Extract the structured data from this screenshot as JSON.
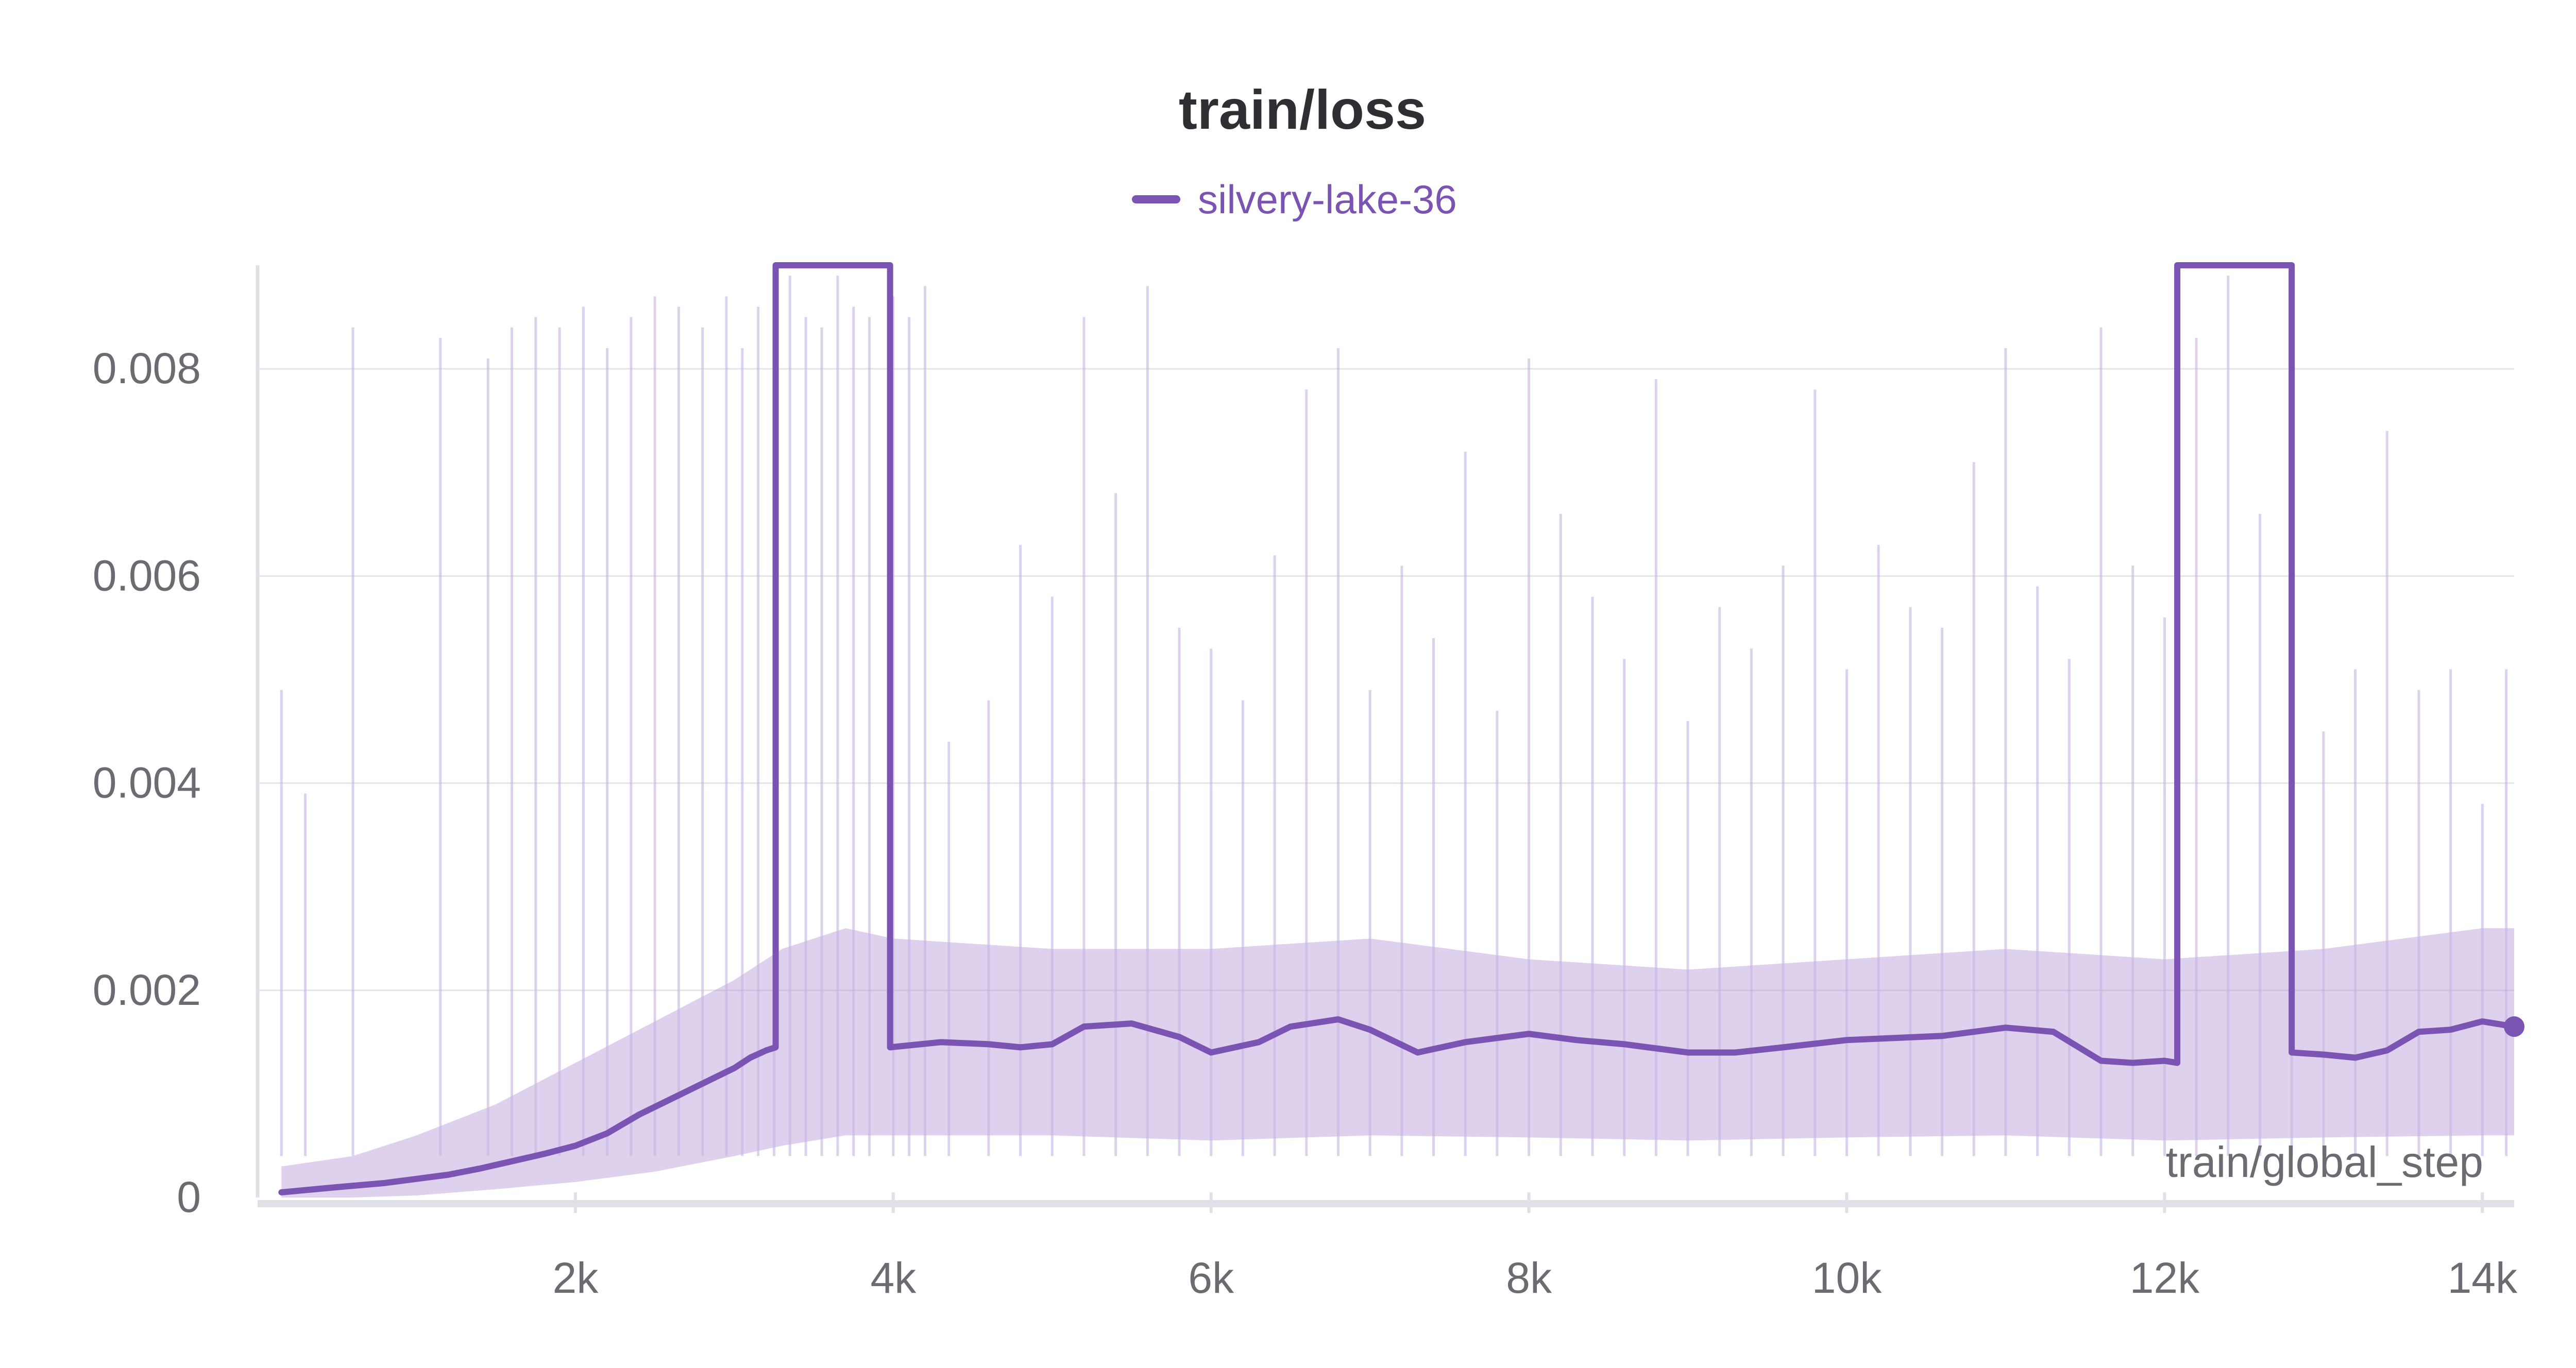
{
  "chart_data": {
    "type": "line",
    "title": "train/loss",
    "xlabel": "train/global_step",
    "ylabel": "",
    "xlim": [
      0,
      14200
    ],
    "ylim": [
      0,
      0.009
    ],
    "grid": true,
    "legend_position": "top-center",
    "x_ticks": [
      {
        "value": 2000,
        "label": "2k"
      },
      {
        "value": 4000,
        "label": "4k"
      },
      {
        "value": 6000,
        "label": "6k"
      },
      {
        "value": 8000,
        "label": "8k"
      },
      {
        "value": 10000,
        "label": "10k"
      },
      {
        "value": 12000,
        "label": "12k"
      },
      {
        "value": 14000,
        "label": "14k"
      }
    ],
    "y_ticks": [
      {
        "value": 0,
        "label": "0"
      },
      {
        "value": 0.002,
        "label": "0.002"
      },
      {
        "value": 0.004,
        "label": "0.004"
      },
      {
        "value": 0.006,
        "label": "0.006"
      },
      {
        "value": 0.008,
        "label": "0.008"
      }
    ],
    "series": [
      {
        "name": "silvery-lake-36",
        "color": "#7b54b3",
        "smoothed": {
          "x": [
            150,
            500,
            800,
            1000,
            1200,
            1400,
            1600,
            1800,
            2000,
            2200,
            2400,
            2600,
            2800,
            3000,
            3100,
            3200,
            3260,
            3260,
            3980,
            3980,
            4300,
            4600,
            4800,
            5000,
            5200,
            5500,
            5800,
            6000,
            6300,
            6500,
            6800,
            7000,
            7300,
            7600,
            8000,
            8300,
            8600,
            9000,
            9300,
            9600,
            10000,
            10300,
            10600,
            11000,
            11300,
            11600,
            11800,
            12000,
            12080,
            12080,
            12800,
            12800,
            13000,
            13200,
            13400,
            13600,
            13800,
            14000,
            14200
          ],
          "y": [
            5e-05,
            0.0001,
            0.00014,
            0.00018,
            0.00022,
            0.00028,
            0.00035,
            0.00042,
            0.0005,
            0.00062,
            0.0008,
            0.00095,
            0.0011,
            0.00125,
            0.00135,
            0.00142,
            0.00145,
            0.009,
            0.009,
            0.00145,
            0.0015,
            0.00148,
            0.00145,
            0.00148,
            0.00165,
            0.00168,
            0.00155,
            0.0014,
            0.0015,
            0.00165,
            0.00172,
            0.00162,
            0.0014,
            0.0015,
            0.00158,
            0.00152,
            0.00148,
            0.0014,
            0.0014,
            0.00145,
            0.00152,
            0.00154,
            0.00156,
            0.00164,
            0.0016,
            0.00132,
            0.0013,
            0.00132,
            0.0013,
            0.009,
            0.009,
            0.0014,
            0.00138,
            0.00135,
            0.00142,
            0.0016,
            0.00162,
            0.0017,
            0.00165
          ]
        },
        "raw_band_upper": {
          "x": [
            150,
            600,
            1000,
            1500,
            2000,
            2500,
            3000,
            3300,
            3700,
            4000,
            5000,
            6000,
            7000,
            8000,
            9000,
            10000,
            11000,
            12000,
            13000,
            14000,
            14200
          ],
          "y": [
            0.0003,
            0.0004,
            0.0006,
            0.0009,
            0.0013,
            0.0017,
            0.0021,
            0.0024,
            0.0026,
            0.0025,
            0.0024,
            0.0024,
            0.0025,
            0.0023,
            0.0022,
            0.0023,
            0.0024,
            0.0023,
            0.0024,
            0.0026,
            0.0026
          ]
        },
        "raw_band_lower": {
          "x": [
            150,
            600,
            1000,
            1500,
            2000,
            2500,
            3000,
            3300,
            3700,
            4000,
            5000,
            6000,
            7000,
            8000,
            9000,
            10000,
            11000,
            12000,
            13000,
            14000,
            14200
          ],
          "y": [
            0,
            0,
            2e-05,
            8e-05,
            0.00015,
            0.00025,
            0.0004,
            0.0005,
            0.0006,
            0.0006,
            0.0006,
            0.00055,
            0.0006,
            0.00058,
            0.00055,
            0.00058,
            0.0006,
            0.00055,
            0.00058,
            0.0006,
            0.0006
          ]
        },
        "raw_spikes": {
          "x": [
            150,
            300,
            600,
            1150,
            1450,
            1600,
            1750,
            1900,
            2050,
            2200,
            2350,
            2500,
            2650,
            2800,
            2950,
            3050,
            3150,
            3250,
            3350,
            3450,
            3550,
            3650,
            3750,
            3850,
            4000,
            4100,
            4200,
            4350,
            4600,
            4800,
            5000,
            5200,
            5400,
            5600,
            5800,
            6000,
            6200,
            6400,
            6600,
            6800,
            7000,
            7200,
            7400,
            7600,
            7800,
            8000,
            8200,
            8400,
            8600,
            8800,
            9000,
            9200,
            9400,
            9600,
            9800,
            10000,
            10200,
            10400,
            10600,
            10800,
            11000,
            11200,
            11400,
            11600,
            11800,
            12000,
            12200,
            12400,
            12600,
            12800,
            13000,
            13200,
            13400,
            13600,
            13800,
            14000,
            14150
          ],
          "y": [
            0.0049,
            0.0039,
            0.0084,
            0.0083,
            0.0081,
            0.0084,
            0.0085,
            0.0084,
            0.0086,
            0.0082,
            0.0085,
            0.0087,
            0.0086,
            0.0084,
            0.0087,
            0.0082,
            0.0086,
            0.0088,
            0.0089,
            0.0085,
            0.0084,
            0.0089,
            0.0086,
            0.0085,
            0.0087,
            0.0085,
            0.0088,
            0.0044,
            0.0048,
            0.0063,
            0.0058,
            0.0085,
            0.0068,
            0.0088,
            0.0055,
            0.0053,
            0.0048,
            0.0062,
            0.0078,
            0.0082,
            0.0049,
            0.0061,
            0.0054,
            0.0072,
            0.0047,
            0.0081,
            0.0066,
            0.0058,
            0.0052,
            0.0079,
            0.0046,
            0.0057,
            0.0053,
            0.0061,
            0.0078,
            0.0051,
            0.0063,
            0.0057,
            0.0055,
            0.0071,
            0.0082,
            0.0059,
            0.0052,
            0.0084,
            0.0061,
            0.0056,
            0.0083,
            0.0089,
            0.0066,
            0.0063,
            0.0045,
            0.0051,
            0.0074,
            0.0049,
            0.0051,
            0.0038,
            0.0051
          ]
        },
        "end_marker": {
          "x": 14200,
          "y": 0.00165
        }
      }
    ]
  }
}
